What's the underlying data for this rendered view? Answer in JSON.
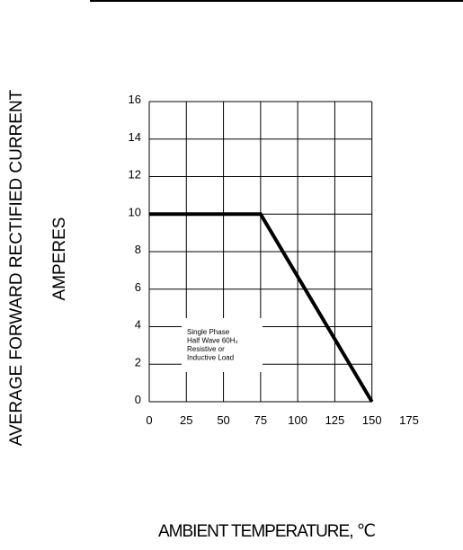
{
  "chart_data": {
    "type": "line",
    "title": "",
    "xlabel": "AMBIENT TEMPERATURE, ℃",
    "ylabel_lines": [
      "AVERAGE FORWARD RECTIFIED CURRENT",
      "AMPERES"
    ],
    "xlim": [
      0,
      175
    ],
    "ylim": [
      0,
      16
    ],
    "x_ticks": [
      "0",
      "25",
      "50",
      "75",
      "100",
      "125",
      "150",
      "175"
    ],
    "y_ticks": [
      "0",
      "2",
      "4",
      "6",
      "8",
      "10",
      "12",
      "14",
      "16"
    ],
    "x_tick_values": [
      0,
      25,
      50,
      75,
      100,
      125,
      150,
      175
    ],
    "y_tick_values": [
      0,
      2,
      4,
      6,
      8,
      10,
      12,
      14,
      16
    ],
    "grid": true,
    "series": [
      {
        "x": [
          0,
          75,
          150
        ],
        "y": [
          10,
          10,
          0
        ]
      }
    ],
    "annotation": [
      "Single Phase",
      "Half Wave 60H₂",
      "Resistive or",
      "Inductive Load"
    ]
  },
  "colors": {
    "line": "#000000",
    "grid": "#000000",
    "background": "#ffffff"
  }
}
